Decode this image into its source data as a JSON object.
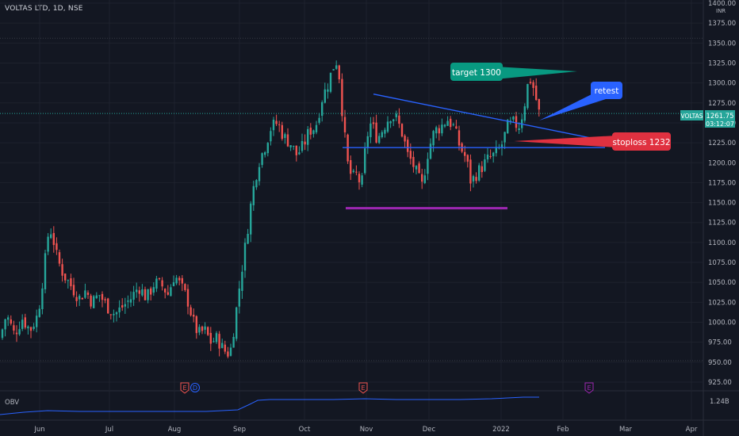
{
  "header": {
    "title": "VOLTAS LTD, 1D, NSE",
    "currency": "INR"
  },
  "chart_data": {
    "type": "candlestick",
    "title": "VOLTAS LTD, 1D, NSE",
    "y_axis": {
      "ticks": [
        "925.00",
        "950.00",
        "975.00",
        "1000.00",
        "1025.00",
        "1050.00",
        "1075.00",
        "1100.00",
        "1125.00",
        "1150.00",
        "1175.00",
        "1200.00",
        "1225.00",
        "1250.00",
        "1275.00",
        "1300.00",
        "1325.00",
        "1350.00",
        "1375.00",
        "1400.00"
      ],
      "range": [
        912,
        1413
      ]
    },
    "x_axis": {
      "ticks": [
        "Jun",
        "Jul",
        "Aug",
        "Sep",
        "Oct",
        "Nov",
        "Dec",
        "2022",
        "Feb",
        "Mar",
        "Apr"
      ]
    },
    "price_label": {
      "symbol": "VOLTAS",
      "price": "1261.75",
      "countdown": "03:12:07",
      "value": 1261.75
    },
    "colors": {
      "up": "#26a69a",
      "down": "#ef5350",
      "trendline": "#2962ff",
      "support": "#9c27b0",
      "obv": "#2962ff"
    },
    "close_path": [
      [
        0,
        980
      ],
      [
        8,
        1010
      ],
      [
        18,
        985
      ],
      [
        28,
        1005
      ],
      [
        38,
        990
      ],
      [
        48,
        1010
      ],
      [
        56,
        1070
      ],
      [
        62,
        1120
      ],
      [
        66,
        1110
      ],
      [
        72,
        1080
      ],
      [
        80,
        1060
      ],
      [
        90,
        1045
      ],
      [
        100,
        1030
      ],
      [
        108,
        1040
      ],
      [
        116,
        1025
      ],
      [
        125,
        1035
      ],
      [
        135,
        1020
      ],
      [
        145,
        1010
      ],
      [
        155,
        1020
      ],
      [
        165,
        1030
      ],
      [
        175,
        1045
      ],
      [
        185,
        1030
      ],
      [
        195,
        1050
      ],
      [
        205,
        1045
      ],
      [
        212,
        1035
      ],
      [
        220,
        1060
      ],
      [
        228,
        1045
      ],
      [
        236,
        1030
      ],
      [
        244,
        1000
      ],
      [
        250,
        985
      ],
      [
        258,
        990
      ],
      [
        266,
        975
      ],
      [
        274,
        980
      ],
      [
        282,
        965
      ],
      [
        290,
        960
      ],
      [
        296,
        1000
      ],
      [
        304,
        1060
      ],
      [
        310,
        1100
      ],
      [
        318,
        1160
      ],
      [
        326,
        1200
      ],
      [
        334,
        1220
      ],
      [
        342,
        1245
      ],
      [
        350,
        1250
      ],
      [
        358,
        1232
      ],
      [
        366,
        1225
      ],
      [
        374,
        1210
      ],
      [
        382,
        1220
      ],
      [
        390,
        1240
      ],
      [
        398,
        1245
      ],
      [
        406,
        1280
      ],
      [
        414,
        1300
      ],
      [
        420,
        1320
      ],
      [
        426,
        1330
      ],
      [
        432,
        1260
      ],
      [
        438,
        1200
      ],
      [
        444,
        1180
      ],
      [
        450,
        1185
      ],
      [
        456,
        1170
      ],
      [
        462,
        1230
      ],
      [
        468,
        1250
      ],
      [
        476,
        1230
      ],
      [
        484,
        1245
      ],
      [
        492,
        1260
      ],
      [
        500,
        1255
      ],
      [
        508,
        1235
      ],
      [
        514,
        1210
      ],
      [
        520,
        1200
      ],
      [
        526,
        1185
      ],
      [
        532,
        1170
      ],
      [
        540,
        1215
      ],
      [
        548,
        1240
      ],
      [
        556,
        1245
      ],
      [
        564,
        1255
      ],
      [
        572,
        1245
      ],
      [
        580,
        1220
      ],
      [
        588,
        1205
      ],
      [
        594,
        1175
      ],
      [
        600,
        1185
      ],
      [
        608,
        1195
      ],
      [
        616,
        1205
      ],
      [
        624,
        1210
      ],
      [
        632,
        1220
      ],
      [
        640,
        1245
      ],
      [
        648,
        1250
      ],
      [
        654,
        1245
      ],
      [
        660,
        1265
      ],
      [
        666,
        1300
      ],
      [
        670,
        1305
      ],
      [
        676,
        1280
      ],
      [
        680,
        1262
      ]
    ],
    "annotations": [
      {
        "text": "target 1300",
        "color": "#089981"
      },
      {
        "text": "retest",
        "color": "#2962ff"
      },
      {
        "text": "stoploss 1232",
        "color": "#e03140"
      }
    ],
    "events": [
      {
        "label": "E",
        "color": "#ef5350"
      },
      {
        "label": "D",
        "color": "#2962ff"
      },
      {
        "label": "E",
        "color": "#ef5350"
      },
      {
        "label": "E",
        "color": "#9c27b0"
      }
    ],
    "indicator": {
      "name": "OBV",
      "value": "1.24B"
    }
  }
}
